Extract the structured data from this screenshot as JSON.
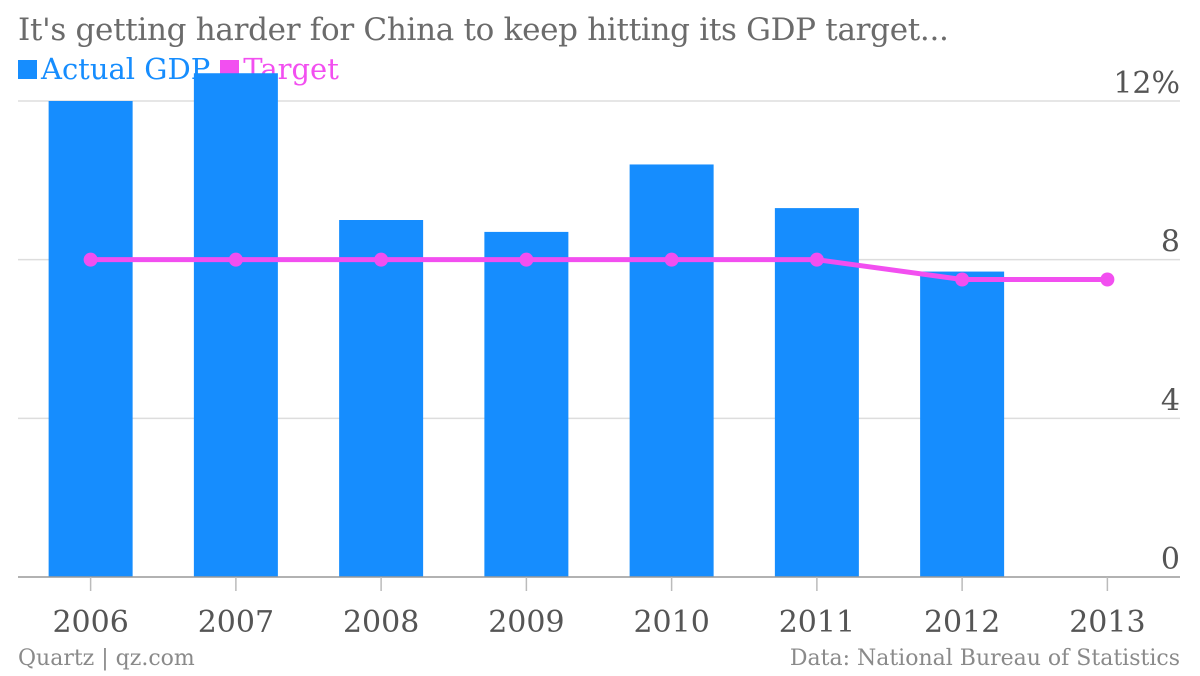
{
  "chart_data": {
    "type": "bar",
    "title": "It's getting harder for China to keep hitting its GDP target...",
    "categories": [
      "2006",
      "2007",
      "2008",
      "2009",
      "2010",
      "2011",
      "2012",
      "2013"
    ],
    "series": [
      {
        "name": "Actual GDP",
        "type": "bar",
        "color": "#168dfe",
        "values": [
          12.0,
          12.7,
          9.0,
          8.7,
          10.4,
          9.3,
          7.7,
          null
        ]
      },
      {
        "name": "Target",
        "type": "line",
        "color": "#f24ff0",
        "values": [
          8.0,
          8.0,
          8.0,
          8.0,
          8.0,
          8.0,
          7.5,
          7.5
        ]
      }
    ],
    "y_axis": {
      "min": 0,
      "max": 12,
      "ticks": [
        0,
        4,
        8,
        12
      ],
      "tick_labels": [
        "0",
        "4",
        "8",
        "12%"
      ],
      "position": "right"
    },
    "grid": true,
    "legend": "top-left"
  },
  "footer": {
    "left": "Quartz | qz.com",
    "right": "Data: National Bureau of Statistics"
  }
}
